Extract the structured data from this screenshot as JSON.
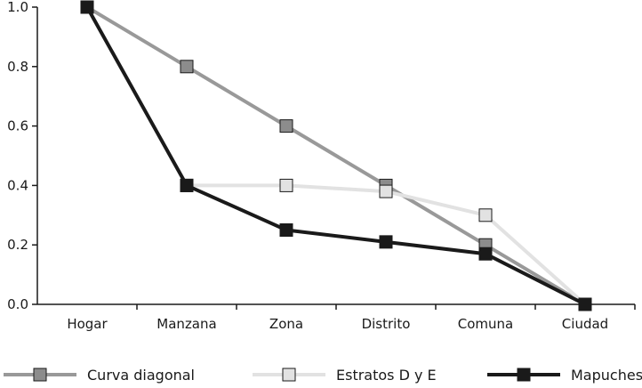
{
  "chart_data": {
    "type": "line",
    "title": "",
    "xlabel": "",
    "ylabel": "",
    "categories": [
      "Hogar",
      "Manzana",
      "Zona",
      "Distrito",
      "Comuna",
      "Ciudad"
    ],
    "ylim": [
      0,
      1.0
    ],
    "yticks": [
      "0.0",
      "0.2",
      "0.4",
      "0.6",
      "0.8",
      "1.0"
    ],
    "grid": false,
    "legend_position": "bottom",
    "series": [
      {
        "name": "Curva diagonal",
        "values": [
          1.0,
          0.8,
          0.6,
          0.4,
          0.2,
          0.0
        ],
        "line_color": "#999999",
        "marker_fill": "#8c8c8c"
      },
      {
        "name": "Estratos D y E",
        "values": [
          1.0,
          0.4,
          0.4,
          0.38,
          0.3,
          0.0
        ],
        "line_color": "#e2e2e2",
        "marker_fill": "#e2e2e2"
      },
      {
        "name": "Mapuches",
        "values": [
          1.0,
          0.4,
          0.25,
          0.21,
          0.17,
          0.0
        ],
        "line_color": "#1a1a1a",
        "marker_fill": "#1a1a1a"
      }
    ]
  }
}
